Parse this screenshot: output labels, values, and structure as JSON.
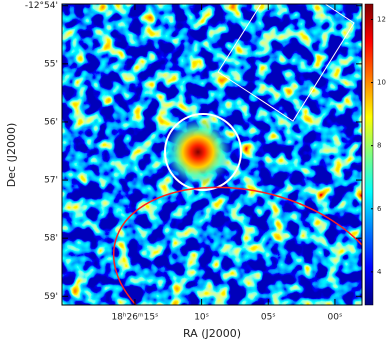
{
  "chart_data": {
    "type": "image",
    "x_label": "RA (J2000)",
    "y_label": "Dec (J2000)",
    "xlim": [
      20.47,
      -2.03
    ],
    "xticks": [
      {
        "value": 15,
        "label": "18ʰ26ᵐ15ˢ"
      },
      {
        "value": 10,
        "label": "10ˢ"
      },
      {
        "value": 5,
        "label": "05ˢ"
      },
      {
        "value": 0,
        "label": "00ˢ"
      }
    ],
    "ylim": [
      -779.15,
      -773.97
    ],
    "yticks": [
      {
        "value": -774,
        "label": "-12°54'"
      },
      {
        "value": -775,
        "label": "55'"
      },
      {
        "value": -776,
        "label": "56'"
      },
      {
        "value": -777,
        "label": "57'"
      },
      {
        "value": -778,
        "label": "58'"
      },
      {
        "value": -779,
        "label": "59'"
      }
    ],
    "colorbar_lim": [
      2.95,
      12.49
    ],
    "colorbar_ticks": [
      4,
      6,
      8,
      10,
      12
    ]
  }
}
